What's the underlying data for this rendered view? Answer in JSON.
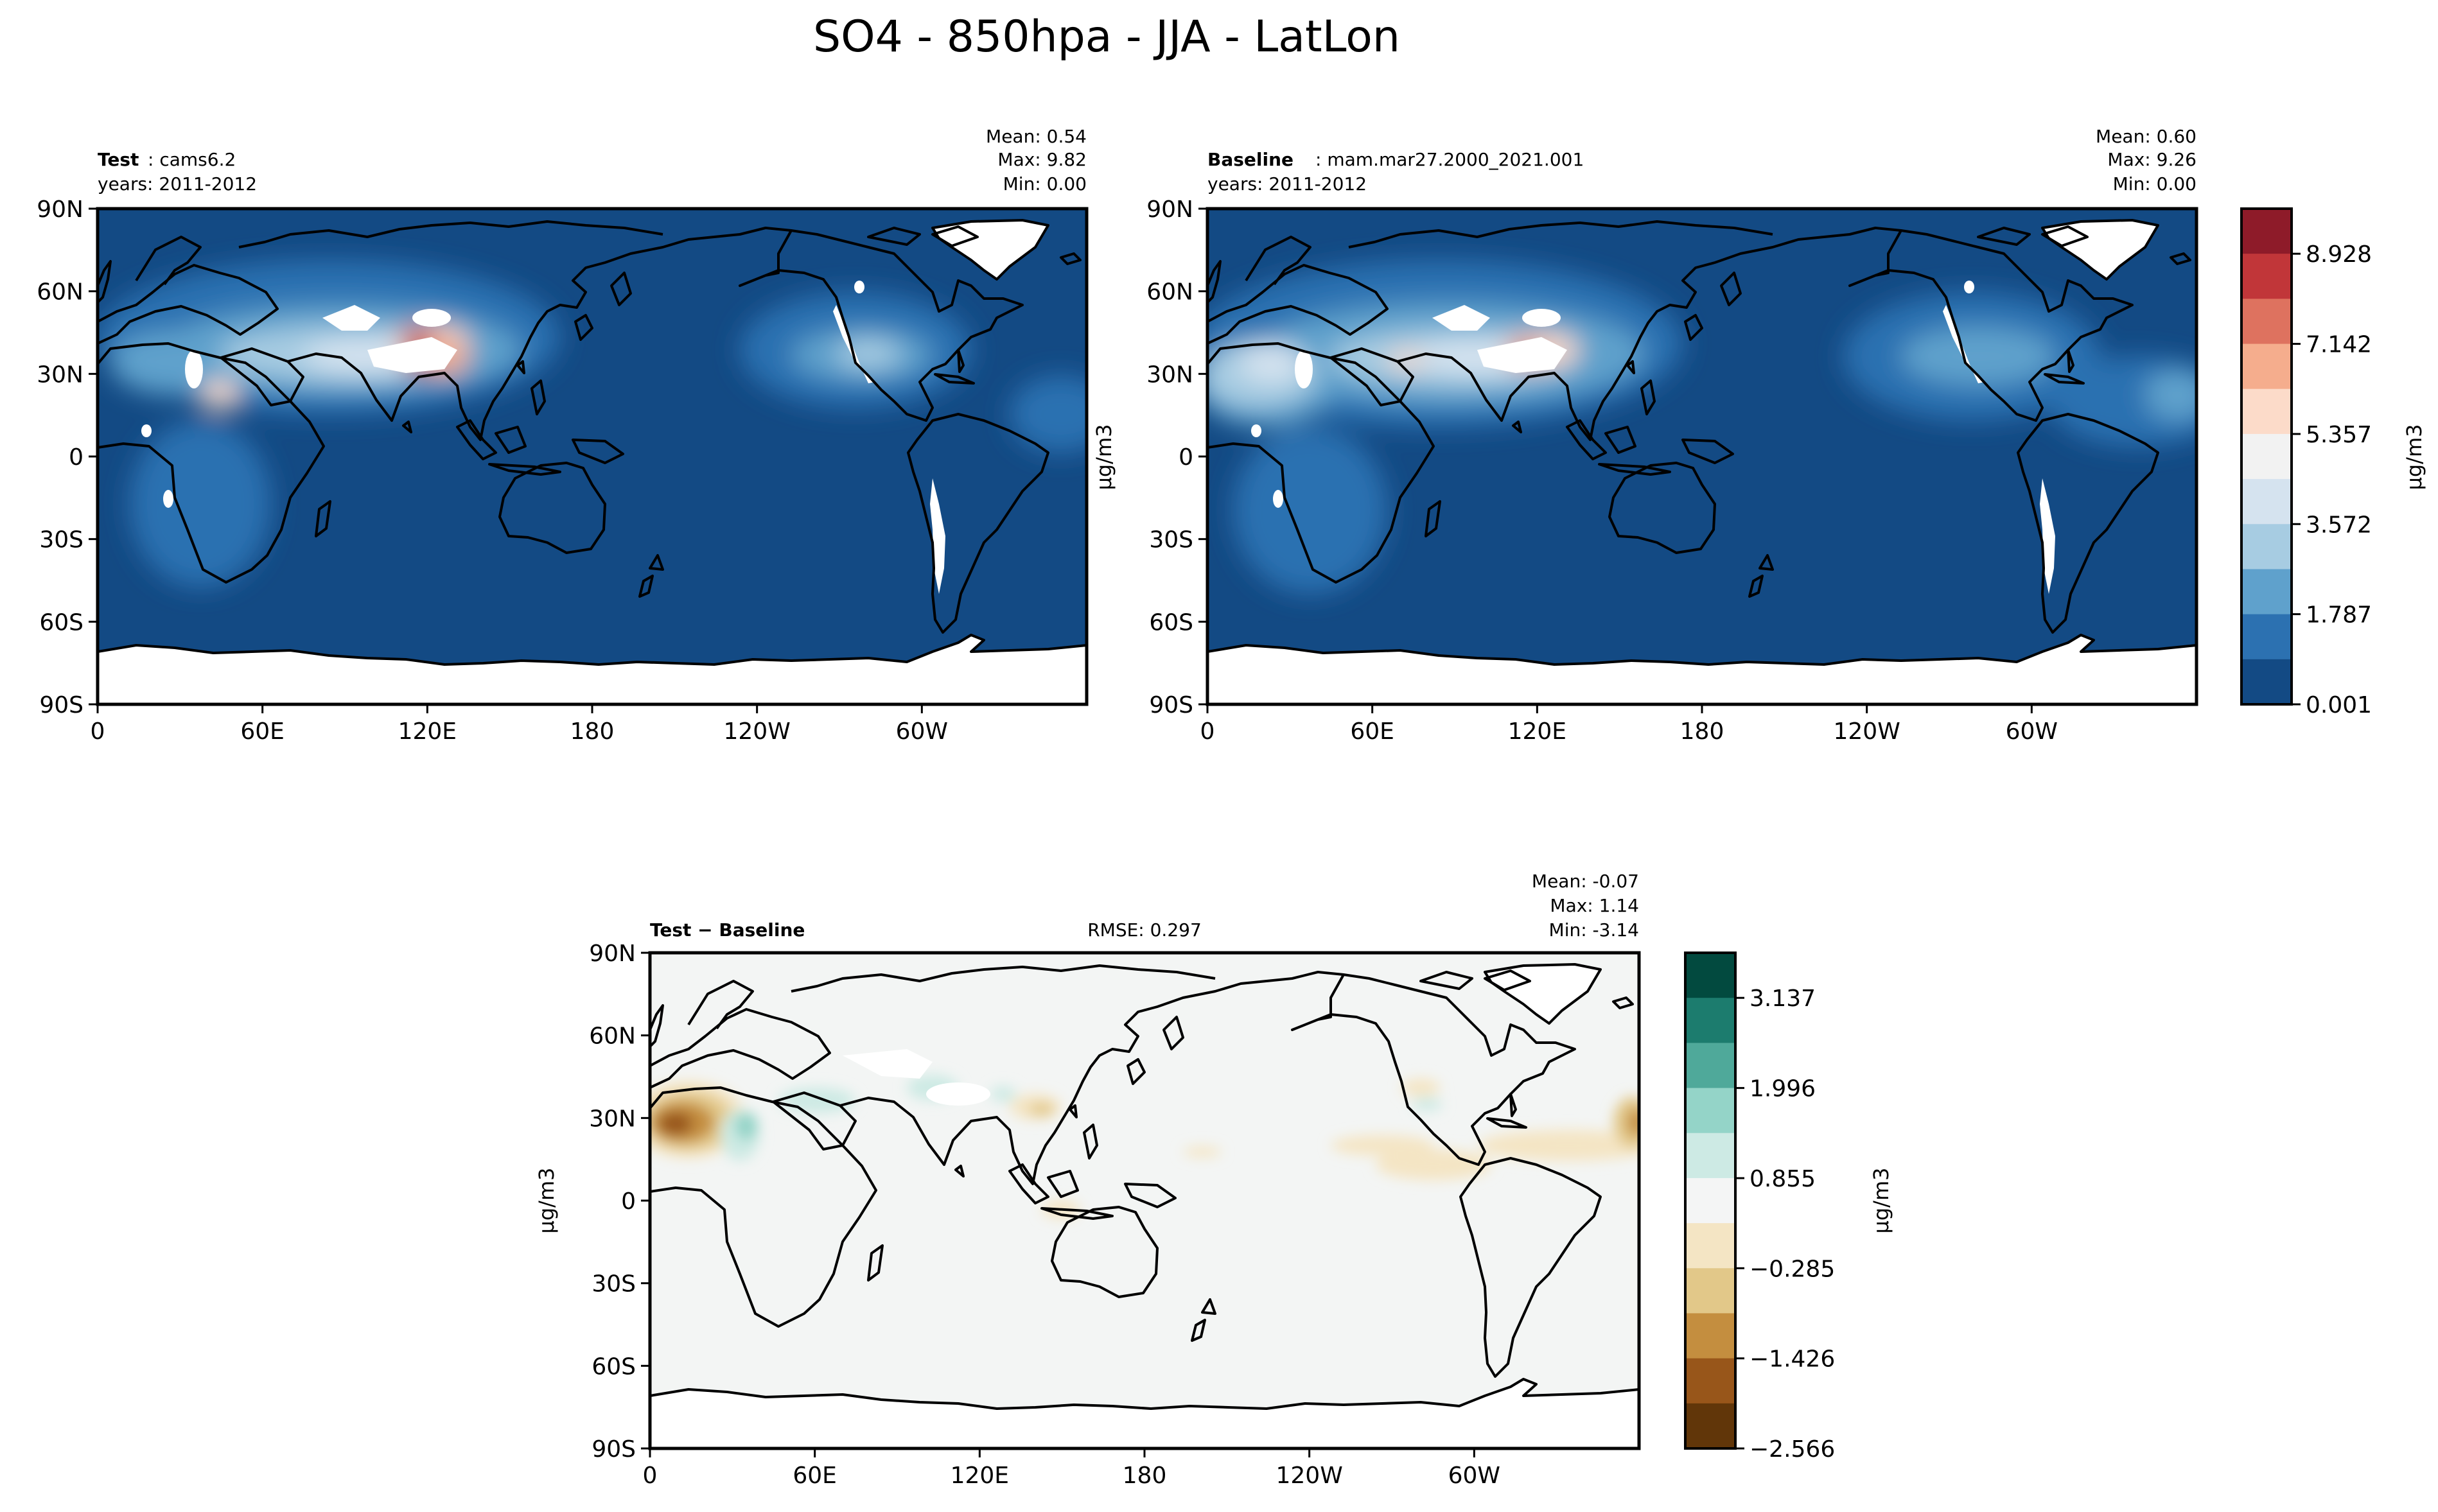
{
  "figure": {
    "title": "SO4 - 850hpa - JJA - LatLon"
  },
  "chart_data": [
    {
      "type": "heatmap",
      "panel": "test",
      "label_bold": "Test",
      "label_rest": ": cams6.2",
      "years": "years: 2011-2012",
      "stats": [
        "Mean:  0.54",
        "Max:  9.82",
        "Min:  0.00"
      ],
      "xticks": [
        "0",
        "60E",
        "120E",
        "180",
        "120W",
        "60W"
      ],
      "yticks": [
        "90N",
        "60N",
        "30N",
        "0",
        "30S",
        "60S",
        "90S"
      ],
      "mean": 0.54,
      "max": 9.82,
      "min": 0.0
    },
    {
      "type": "heatmap",
      "panel": "baseline",
      "label_bold": "Baseline",
      "label_rest": ": mam.mar27.2000_2021.001",
      "years": "years: 2011-2012",
      "stats": [
        "Mean:  0.60",
        "Max:  9.26",
        "Min:  0.00"
      ],
      "xticks": [
        "0",
        "60E",
        "120E",
        "180",
        "120W",
        "60W"
      ],
      "yticks": [
        "90N",
        "60N",
        "30N",
        "0",
        "30S",
        "60S",
        "90S"
      ],
      "mean": 0.6,
      "max": 9.26,
      "min": 0.0
    },
    {
      "type": "heatmap",
      "panel": "difference",
      "label_bold": "Test − Baseline",
      "rmse": "RMSE: 0.297",
      "stats": [
        "Mean: -0.07",
        "Max:  1.14",
        "Min: -3.14"
      ],
      "xticks": [
        "0",
        "60E",
        "120E",
        "180",
        "120W",
        "60W"
      ],
      "yticks": [
        "90N",
        "60N",
        "30N",
        "0",
        "30S",
        "60S",
        "90S"
      ],
      "ylabel": "μg/m3",
      "mean": -0.07,
      "max": 1.14,
      "min": -3.14
    }
  ],
  "colorbars": {
    "main": {
      "label": "μg/m3",
      "tick_labels": [
        "8.928",
        "7.142",
        "5.357",
        "3.572",
        "1.787",
        "0.001"
      ],
      "ticks": [
        8.928,
        7.142,
        5.357,
        3.572,
        1.787,
        0.001
      ],
      "colors": [
        "#8e1b29",
        "#c13639",
        "#de725f",
        "#f5ad8d",
        "#fcdbc9",
        "#f2f2f2",
        "#d5e3ef",
        "#a7cce2",
        "#5fa1cc",
        "#2c71b1",
        "#134a84"
      ]
    },
    "diff": {
      "label": "μg/m3",
      "tick_labels": [
        "3.137",
        "1.996",
        "0.855",
        "−0.285",
        "−1.426",
        "−2.566"
      ],
      "ticks": [
        3.137,
        1.996,
        0.855,
        -0.285,
        -1.426,
        -2.566
      ],
      "colors": [
        "#024a3f",
        "#1c7c6e",
        "#4fa99a",
        "#94d4c8",
        "#cdeae4",
        "#f4f5f5",
        "#f4e5c4",
        "#e2c889",
        "#c48e3f",
        "#98561a",
        "#613609"
      ]
    }
  },
  "colors": {
    "ocean_low": "#134a84",
    "land_missing": "#ffffff",
    "diff_background": "#f3f5f4"
  }
}
